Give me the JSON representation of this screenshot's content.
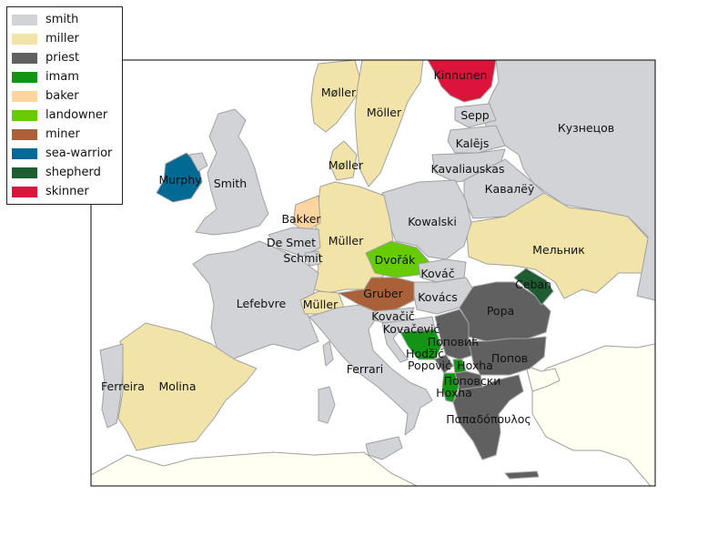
{
  "legend": [
    {
      "label": "smith",
      "color": "#d1d3d6"
    },
    {
      "label": "miller",
      "color": "#f2e4a8"
    },
    {
      "label": "priest",
      "color": "#606060"
    },
    {
      "label": "imam",
      "color": "#149414"
    },
    {
      "label": "baker",
      "color": "#fdd5a0"
    },
    {
      "label": "landowner",
      "color": "#66cc00"
    },
    {
      "label": "miner",
      "color": "#aa6038"
    },
    {
      "label": "sea-warrior",
      "color": "#006994"
    },
    {
      "label": "shepherd",
      "color": "#1e5c32"
    },
    {
      "label": "skinner",
      "color": "#dc143c"
    }
  ],
  "colors": {
    "other": "#fffff2",
    "border": "#a0a0a0",
    "frame": "#000000"
  },
  "labels": [
    {
      "text": "Kinnunen",
      "cat": "skinner"
    },
    {
      "text": "Møller",
      "cat": "miller"
    },
    {
      "text": "Möller",
      "cat": "miller"
    },
    {
      "text": "Sepp",
      "cat": "smith"
    },
    {
      "text": "Кузнецов",
      "cat": "smith"
    },
    {
      "text": "Kalējs",
      "cat": "smith"
    },
    {
      "text": "Møller",
      "cat": "miller"
    },
    {
      "text": "Kavaliauskas",
      "cat": "smith"
    },
    {
      "text": "Кавалёў",
      "cat": "smith"
    },
    {
      "text": "Murphy",
      "cat": "sea-warrior"
    },
    {
      "text": "Smith",
      "cat": "smith"
    },
    {
      "text": "Bakker",
      "cat": "baker"
    },
    {
      "text": "De Smet",
      "cat": "smith"
    },
    {
      "text": "Schmit",
      "cat": "smith"
    },
    {
      "text": "Müller",
      "cat": "miller"
    },
    {
      "text": "Kowalski",
      "cat": "smith"
    },
    {
      "text": "Мельник",
      "cat": "miller"
    },
    {
      "text": "Dvořák",
      "cat": "landowner"
    },
    {
      "text": "Kováč",
      "cat": "smith"
    },
    {
      "text": "Ceban",
      "cat": "shepherd"
    },
    {
      "text": "Lefebvre",
      "cat": "smith"
    },
    {
      "text": "Müller",
      "cat": "miller"
    },
    {
      "text": "Gruber",
      "cat": "miner"
    },
    {
      "text": "Kovács",
      "cat": "smith"
    },
    {
      "text": "Popa",
      "cat": "priest"
    },
    {
      "text": "Kovačič",
      "cat": "smith"
    },
    {
      "text": "Kovačević",
      "cat": "smith"
    },
    {
      "text": "Поповић",
      "cat": "priest"
    },
    {
      "text": "Hodžić",
      "cat": "imam"
    },
    {
      "text": "Попов",
      "cat": "priest"
    },
    {
      "text": "Popović",
      "cat": "priest"
    },
    {
      "text": "Hoxha",
      "cat": "imam"
    },
    {
      "text": "Ferrari",
      "cat": "smith"
    },
    {
      "text": "Поповски",
      "cat": "priest"
    },
    {
      "text": "Ferreira",
      "cat": "smith"
    },
    {
      "text": "Molina",
      "cat": "miller"
    },
    {
      "text": "Hoxha",
      "cat": "imam"
    },
    {
      "text": "Παπαδόπουλος",
      "cat": "priest"
    }
  ]
}
